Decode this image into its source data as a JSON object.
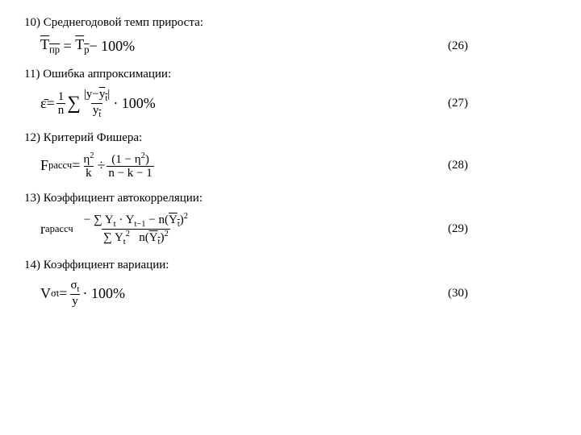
{
  "items": [
    {
      "heading": "10) Среднегодовой темп прироста:",
      "eqnum": "(26)"
    },
    {
      "heading": "11) Ошибка аппроксимации:",
      "eqnum": "(27)"
    },
    {
      "heading": "12) Критерий Фишера:",
      "eqnum": "(28)"
    },
    {
      "heading": "13) Коэффициент автокорреляции:",
      "eqnum": "(29)"
    },
    {
      "heading": "14) Коэффициент вариации:",
      "eqnum": "(30)"
    }
  ],
  "f26": {
    "lhs_base": "Т",
    "lhs_sub": "пр",
    "rhs_base": "Т",
    "rhs_sub": "р",
    "minus": " − 100%"
  },
  "f27": {
    "lhs": "ε̄",
    "eq": " = ",
    "one": "1",
    "n": "n",
    "sum": "∑",
    "abs_l": "|y−",
    "yt": "y",
    "t": "t",
    "abs_r": "|",
    "den_y": "y",
    "den_t": "t",
    "mult": " · 100%"
  },
  "f28": {
    "F": "F",
    "Fsub": "рассч",
    "eq": " = ",
    "eta2": "η",
    "sq": "2",
    "k": "k",
    "div": " ÷ ",
    "one": "1",
    "minus": "−",
    "n": "n",
    "km1": "n − k − 1"
  },
  "f29": {
    "r": "r",
    "rsub": "aрассч",
    "eq2": "  ",
    "m": "− ",
    "sum": "∑",
    "Yt": "Y",
    "t": "t",
    "dot": " · ",
    "tm1": "t−1",
    "minus": " − n(",
    "close": ")",
    "sq": "2",
    "den_n": "n("
  },
  "f30": {
    "V": "V",
    "Vsub": "σt",
    "eq": " = ",
    "num": "σ",
    "numt": "t",
    "den": "y",
    "mult": " · 100%"
  }
}
